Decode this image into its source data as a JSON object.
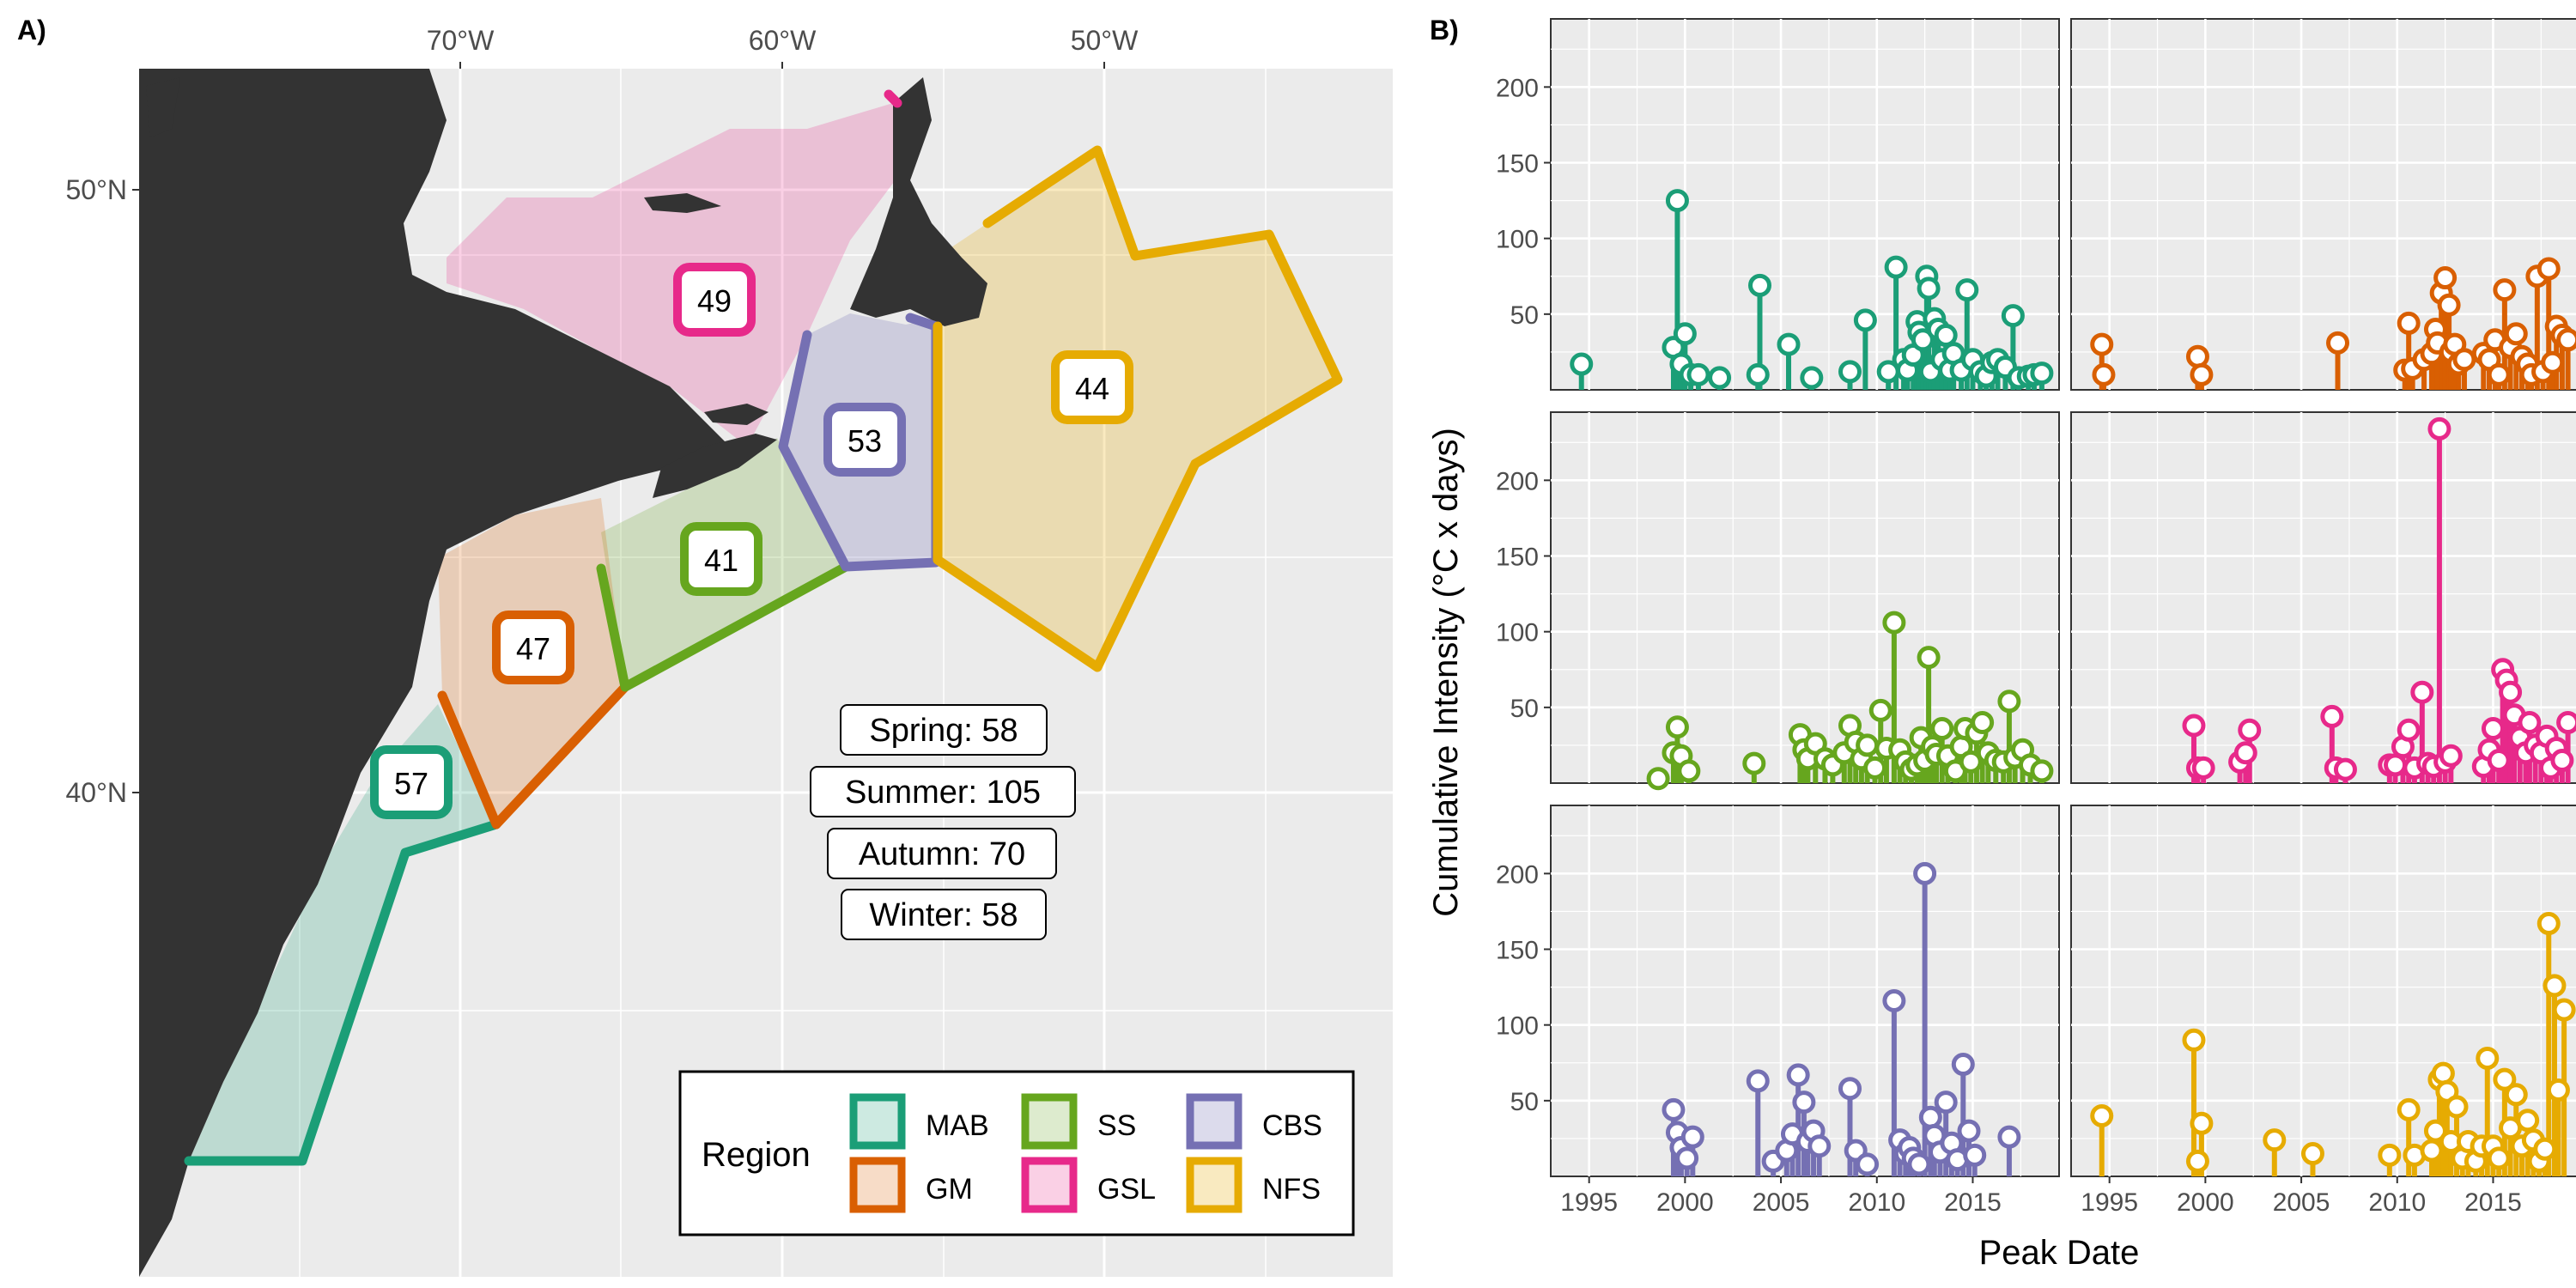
{
  "panel_a_label": "A)",
  "panel_b_label": "B)",
  "chart_data": [
    {
      "type": "map",
      "panel": "A",
      "lon_ticks": [
        "70°W",
        "60°W",
        "50°W"
      ],
      "lat_ticks": [
        "50°N",
        "40°N"
      ],
      "regions": [
        {
          "code": "MAB",
          "count": 57,
          "color": "#1b9e77"
        },
        {
          "code": "GM",
          "count": 47,
          "color": "#d95f02"
        },
        {
          "code": "SS",
          "count": 41,
          "color": "#66a61e"
        },
        {
          "code": "GSL",
          "count": 49,
          "color": "#e7298a"
        },
        {
          "code": "CBS",
          "count": 53,
          "color": "#7570b3"
        },
        {
          "code": "NFS",
          "count": 44,
          "color": "#e6ab02"
        }
      ],
      "season_counts": [
        {
          "label": "Spring: 58"
        },
        {
          "label": "Summer: 105"
        },
        {
          "label": "Autumn: 70"
        },
        {
          "label": "Winter: 58"
        }
      ],
      "legend_title": "Region",
      "legend_placement": "bottom-right"
    },
    {
      "type": "scatter",
      "style": "lollipop",
      "panel": "B",
      "xlabel": "Peak Date",
      "ylabel": "Cumulative Intensity (°C x days)",
      "x_ticks": [
        1995,
        2000,
        2005,
        2010,
        2015
      ],
      "y_ticks": [
        50,
        100,
        150,
        200
      ],
      "xlim": [
        1993,
        2019.5
      ],
      "ylim": [
        0,
        245
      ],
      "grid": true,
      "series": [
        {
          "color": "#1b9e77",
          "points": [
            [
              1994.6,
              17
            ],
            [
              1999.4,
              28
            ],
            [
              1999.6,
              125
            ],
            [
              1999.8,
              17
            ],
            [
              2000,
              37
            ],
            [
              2000.3,
              10
            ],
            [
              2000.7,
              10
            ],
            [
              2001.8,
              8
            ],
            [
              2003.8,
              10
            ],
            [
              2003.9,
              69
            ],
            [
              2005.4,
              30
            ],
            [
              2006.6,
              8
            ],
            [
              2008.6,
              12
            ],
            [
              2009.4,
              46
            ],
            [
              2010.6,
              12
            ],
            [
              2011,
              81
            ],
            [
              2011.4,
              20
            ],
            [
              2011.6,
              13
            ],
            [
              2011.9,
              23
            ],
            [
              2012.1,
              45
            ],
            [
              2012.2,
              38
            ],
            [
              2012.4,
              33
            ],
            [
              2012.6,
              75
            ],
            [
              2012.7,
              67
            ],
            [
              2012.8,
              12
            ],
            [
              2013,
              47
            ],
            [
              2013.2,
              40
            ],
            [
              2013.4,
              20
            ],
            [
              2013.6,
              36
            ],
            [
              2013.8,
              13
            ],
            [
              2014,
              24
            ],
            [
              2014.4,
              13
            ],
            [
              2014.7,
              66
            ],
            [
              2015,
              20
            ],
            [
              2015.4,
              12
            ],
            [
              2015.7,
              9
            ],
            [
              2016,
              18
            ],
            [
              2016.3,
              20
            ],
            [
              2016.7,
              15
            ],
            [
              2017.1,
              49
            ],
            [
              2017.4,
              8
            ],
            [
              2017.9,
              9
            ],
            [
              2018.2,
              10
            ],
            [
              2018.6,
              11
            ]
          ]
        },
        {
          "color": "#d95f02",
          "points": [
            [
              1994.6,
              30
            ],
            [
              1994.7,
              10
            ],
            [
              1999.6,
              22
            ],
            [
              1999.8,
              10
            ],
            [
              2006.9,
              31
            ],
            [
              2010.4,
              13
            ],
            [
              2010.6,
              44
            ],
            [
              2010.8,
              14
            ],
            [
              2011.4,
              20
            ],
            [
              2011.8,
              24
            ],
            [
              2012,
              40
            ],
            [
              2012.1,
              31
            ],
            [
              2012.3,
              64
            ],
            [
              2012.5,
              74
            ],
            [
              2012.7,
              56
            ],
            [
              2012.8,
              25
            ],
            [
              2013,
              30
            ],
            [
              2013.2,
              17
            ],
            [
              2013.5,
              20
            ],
            [
              2014.5,
              24
            ],
            [
              2014.8,
              20
            ],
            [
              2015.1,
              33
            ],
            [
              2015.3,
              10
            ],
            [
              2015.6,
              66
            ],
            [
              2015.9,
              28
            ],
            [
              2016.2,
              37
            ],
            [
              2016.5,
              22
            ],
            [
              2016.8,
              17
            ],
            [
              2017,
              10
            ],
            [
              2017.3,
              75
            ],
            [
              2017.6,
              12
            ],
            [
              2017.9,
              80
            ],
            [
              2018.1,
              18
            ],
            [
              2018.3,
              42
            ],
            [
              2018.6,
              36
            ],
            [
              2018.9,
              33
            ]
          ]
        },
        {
          "color": "#66a61e",
          "points": [
            [
              1998.6,
              3
            ],
            [
              1999.4,
              20
            ],
            [
              1999.6,
              37
            ],
            [
              1999.8,
              18
            ],
            [
              2000.2,
              8
            ],
            [
              2003.6,
              13
            ],
            [
              2006,
              32
            ],
            [
              2006.2,
              22
            ],
            [
              2006.4,
              16
            ],
            [
              2006.8,
              26
            ],
            [
              2007.3,
              16
            ],
            [
              2007.7,
              12
            ],
            [
              2008.3,
              20
            ],
            [
              2008.6,
              38
            ],
            [
              2008.9,
              27
            ],
            [
              2009.2,
              16
            ],
            [
              2009.5,
              25
            ],
            [
              2009.9,
              10
            ],
            [
              2010.2,
              48
            ],
            [
              2010.5,
              23
            ],
            [
              2010.9,
              106
            ],
            [
              2011.2,
              22
            ],
            [
              2011.5,
              14
            ],
            [
              2011.8,
              9
            ],
            [
              2012.1,
              12
            ],
            [
              2012.3,
              30
            ],
            [
              2012.5,
              15
            ],
            [
              2012.7,
              83
            ],
            [
              2012.9,
              24
            ],
            [
              2013.1,
              19
            ],
            [
              2013.4,
              36
            ],
            [
              2013.7,
              18
            ],
            [
              2014.1,
              8
            ],
            [
              2014.4,
              24
            ],
            [
              2014.6,
              36
            ],
            [
              2014.9,
              14
            ],
            [
              2015.2,
              33
            ],
            [
              2015.5,
              40
            ],
            [
              2015.8,
              20
            ],
            [
              2016.2,
              15
            ],
            [
              2016.6,
              14
            ],
            [
              2016.9,
              54
            ],
            [
              2017.2,
              17
            ],
            [
              2017.6,
              22
            ],
            [
              2018,
              12
            ],
            [
              2018.6,
              8
            ]
          ]
        },
        {
          "color": "#e7298a",
          "points": [
            [
              1999.4,
              38
            ],
            [
              1999.6,
              10
            ],
            [
              1999.9,
              10
            ],
            [
              2001.8,
              14
            ],
            [
              2002.1,
              20
            ],
            [
              2002.3,
              35
            ],
            [
              2006.6,
              44
            ],
            [
              2006.8,
              10
            ],
            [
              2007.3,
              9
            ],
            [
              2009.6,
              12
            ],
            [
              2009.9,
              12
            ],
            [
              2010.3,
              24
            ],
            [
              2010.6,
              35
            ],
            [
              2010.9,
              10
            ],
            [
              2011.3,
              60
            ],
            [
              2011.6,
              13
            ],
            [
              2011.9,
              11
            ],
            [
              2012.2,
              234
            ],
            [
              2012.5,
              14
            ],
            [
              2012.8,
              18
            ],
            [
              2014.5,
              11
            ],
            [
              2014.8,
              22
            ],
            [
              2015,
              36
            ],
            [
              2015.3,
              15
            ],
            [
              2015.5,
              75
            ],
            [
              2015.7,
              68
            ],
            [
              2015.9,
              60
            ],
            [
              2016.1,
              45
            ],
            [
              2016.4,
              30
            ],
            [
              2016.7,
              20
            ],
            [
              2016.9,
              40
            ],
            [
              2017.2,
              25
            ],
            [
              2017.5,
              20
            ],
            [
              2017.8,
              31
            ],
            [
              2018,
              10
            ],
            [
              2018.3,
              23
            ],
            [
              2018.6,
              15
            ],
            [
              2018.9,
              40
            ]
          ]
        },
        {
          "color": "#7570b3",
          "points": [
            [
              1999.4,
              44
            ],
            [
              1999.6,
              29
            ],
            [
              1999.8,
              19
            ],
            [
              2000.1,
              12
            ],
            [
              2000.4,
              26
            ],
            [
              2003.8,
              63
            ],
            [
              2004.6,
              10
            ],
            [
              2005.3,
              17
            ],
            [
              2005.6,
              28
            ],
            [
              2005.9,
              67
            ],
            [
              2006.2,
              49
            ],
            [
              2006.4,
              23
            ],
            [
              2006.7,
              30
            ],
            [
              2007,
              20
            ],
            [
              2008.6,
              58
            ],
            [
              2008.9,
              17
            ],
            [
              2009.5,
              8
            ],
            [
              2010.9,
              116
            ],
            [
              2011.2,
              24
            ],
            [
              2011.5,
              15
            ],
            [
              2011.7,
              19
            ],
            [
              2011.9,
              12
            ],
            [
              2012.2,
              8
            ],
            [
              2012.5,
              200
            ],
            [
              2012.8,
              39
            ],
            [
              2013,
              27
            ],
            [
              2013.3,
              16
            ],
            [
              2013.6,
              49
            ],
            [
              2013.9,
              22
            ],
            [
              2014.2,
              11
            ],
            [
              2014.5,
              74
            ],
            [
              2014.8,
              30
            ],
            [
              2015.1,
              14
            ],
            [
              2016.9,
              26
            ]
          ]
        },
        {
          "color": "#e6ab02",
          "points": [
            [
              1994.6,
              40
            ],
            [
              1999.4,
              90
            ],
            [
              1999.6,
              10
            ],
            [
              1999.8,
              35
            ],
            [
              2003.6,
              24
            ],
            [
              2005.6,
              15
            ],
            [
              2009.6,
              14
            ],
            [
              2010.6,
              44
            ],
            [
              2010.9,
              14
            ],
            [
              2011.8,
              17
            ],
            [
              2012,
              30
            ],
            [
              2012.2,
              64
            ],
            [
              2012.4,
              68
            ],
            [
              2012.6,
              56
            ],
            [
              2012.8,
              23
            ],
            [
              2013.1,
              46
            ],
            [
              2013.4,
              12
            ],
            [
              2013.7,
              23
            ],
            [
              2014.1,
              10
            ],
            [
              2014.4,
              20
            ],
            [
              2014.7,
              78
            ],
            [
              2015,
              20
            ],
            [
              2015.3,
              12
            ],
            [
              2015.6,
              64
            ],
            [
              2015.9,
              32
            ],
            [
              2016.2,
              54
            ],
            [
              2016.5,
              20
            ],
            [
              2016.8,
              37
            ],
            [
              2017.1,
              24
            ],
            [
              2017.4,
              10
            ],
            [
              2017.7,
              18
            ],
            [
              2017.9,
              167
            ],
            [
              2018.2,
              126
            ],
            [
              2018.4,
              57
            ],
            [
              2018.7,
              110
            ]
          ]
        }
      ]
    }
  ]
}
